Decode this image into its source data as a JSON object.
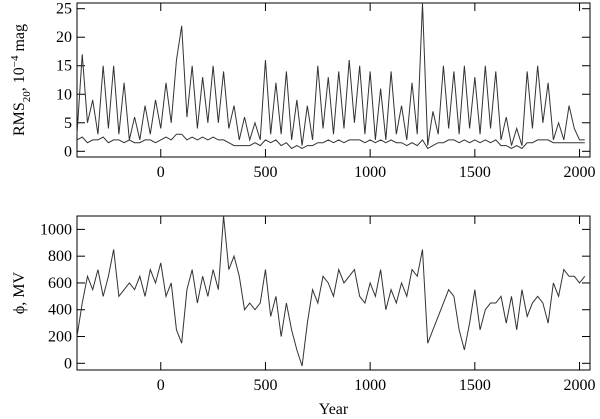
{
  "chart_data": [
    {
      "type": "line",
      "y_label_parts": [
        "RMS",
        "20",
        ", 10",
        "−4",
        " mag"
      ],
      "x": [
        -400,
        -375,
        -350,
        -325,
        -300,
        -275,
        -250,
        -225,
        -200,
        -175,
        -150,
        -125,
        -100,
        -75,
        -50,
        -25,
        0,
        25,
        50,
        75,
        100,
        125,
        150,
        175,
        200,
        225,
        250,
        275,
        300,
        325,
        350,
        375,
        400,
        425,
        450,
        475,
        500,
        525,
        550,
        575,
        600,
        625,
        650,
        675,
        700,
        725,
        750,
        775,
        800,
        825,
        850,
        875,
        900,
        925,
        950,
        975,
        1000,
        1025,
        1050,
        1075,
        1100,
        1125,
        1150,
        1175,
        1200,
        1225,
        1250,
        1275,
        1300,
        1325,
        1350,
        1375,
        1400,
        1425,
        1450,
        1475,
        1500,
        1525,
        1550,
        1575,
        1600,
        1625,
        1650,
        1675,
        1700,
        1725,
        1750,
        1775,
        1800,
        1825,
        1850,
        1875,
        1900,
        1925,
        1950,
        1975,
        2000,
        2025
      ],
      "series": [
        {
          "color": "#333333",
          "values": [
            3,
            17,
            5,
            9,
            3,
            15,
            4,
            15,
            3,
            12,
            2,
            6,
            2,
            8,
            3,
            9,
            4,
            12,
            5,
            16,
            22,
            6,
            15,
            4,
            13,
            5,
            15,
            5,
            14,
            4,
            8,
            2,
            6,
            2,
            5,
            2,
            16,
            3,
            12,
            3,
            14,
            2,
            9,
            1,
            8,
            2,
            15,
            4,
            13,
            3,
            14,
            4,
            16,
            5,
            15,
            3,
            14,
            2,
            11,
            2,
            14,
            3,
            8,
            2,
            12,
            3,
            26,
            1,
            7,
            3,
            15,
            4,
            14,
            3,
            15,
            4,
            13,
            3,
            15,
            4,
            14,
            2,
            6,
            1,
            4,
            1,
            14,
            4,
            15,
            5,
            12,
            2,
            5,
            2,
            8,
            4,
            2,
            2
          ]
        },
        {
          "color": "#333333",
          "values": [
            2,
            2.5,
            1.5,
            2,
            2,
            2.5,
            1.5,
            2,
            2,
            1.5,
            2,
            1.5,
            1.5,
            2,
            2,
            1.5,
            2,
            2.5,
            2,
            3,
            3,
            2,
            2.5,
            2,
            2.5,
            2,
            2.5,
            2,
            2,
            1.5,
            1,
            1,
            1,
            1,
            1.5,
            1,
            2,
            1.5,
            2,
            1,
            1.5,
            0.5,
            1,
            0.5,
            1,
            1,
            1.5,
            1.5,
            2,
            1.5,
            2,
            1.5,
            2,
            2,
            2,
            1.5,
            2,
            1.5,
            2,
            1.5,
            2,
            1.5,
            1.5,
            1,
            1.5,
            1,
            2,
            0.5,
            1,
            1.5,
            1.5,
            2,
            2,
            1.5,
            2,
            1.5,
            2,
            1.5,
            2,
            1.5,
            2,
            1,
            1,
            0.5,
            1,
            0.5,
            1.5,
            1.5,
            2,
            2,
            2,
            1.5,
            1.5,
            1.5,
            1.5,
            1.5,
            1.5,
            1.5
          ]
        }
      ],
      "xlim": [
        -400,
        2050
      ],
      "xticks": [
        0,
        500,
        1000,
        1500,
        2000
      ],
      "ylim": [
        -1,
        26
      ],
      "yticks": [
        0,
        5,
        10,
        15,
        20,
        25
      ]
    },
    {
      "type": "line",
      "y_label": "ϕ, MV",
      "x_label": "Year",
      "x": [
        -400,
        -375,
        -350,
        -325,
        -300,
        -275,
        -250,
        -225,
        -200,
        -175,
        -150,
        -125,
        -100,
        -75,
        -50,
        -25,
        0,
        25,
        50,
        75,
        100,
        125,
        150,
        175,
        200,
        225,
        250,
        275,
        300,
        325,
        350,
        375,
        400,
        425,
        450,
        475,
        500,
        525,
        550,
        575,
        600,
        625,
        650,
        675,
        700,
        725,
        750,
        775,
        800,
        825,
        850,
        875,
        900,
        925,
        950,
        975,
        1000,
        1025,
        1050,
        1075,
        1100,
        1125,
        1150,
        1175,
        1200,
        1225,
        1250,
        1275,
        1300,
        1325,
        1350,
        1375,
        1400,
        1425,
        1450,
        1475,
        1500,
        1525,
        1550,
        1575,
        1600,
        1625,
        1650,
        1675,
        1700,
        1725,
        1750,
        1775,
        1800,
        1825,
        1850,
        1875,
        1900,
        1925,
        1950,
        1975,
        2000,
        2025
      ],
      "series": [
        {
          "color": "#333333",
          "values": [
            200,
            450,
            650,
            550,
            700,
            500,
            650,
            850,
            500,
            550,
            600,
            550,
            650,
            500,
            700,
            600,
            750,
            500,
            600,
            250,
            150,
            550,
            700,
            450,
            650,
            500,
            700,
            550,
            1100,
            700,
            800,
            650,
            400,
            450,
            400,
            450,
            700,
            350,
            500,
            200,
            450,
            250,
            100,
            -20,
            300,
            550,
            450,
            650,
            600,
            500,
            700,
            600,
            650,
            700,
            500,
            450,
            600,
            500,
            700,
            400,
            550,
            450,
            600,
            500,
            700,
            650,
            850,
            150,
            250,
            350,
            450,
            550,
            500,
            250,
            100,
            300,
            550,
            250,
            400,
            450,
            450,
            500,
            300,
            500,
            250,
            550,
            350,
            450,
            500,
            450,
            300,
            600,
            500,
            700,
            650,
            650,
            600,
            650
          ]
        }
      ],
      "xlim": [
        -400,
        2050
      ],
      "xticks": [
        0,
        500,
        1000,
        1500,
        2000
      ],
      "ylim": [
        -50,
        1100
      ],
      "yticks": [
        0,
        200,
        400,
        600,
        800,
        1000
      ]
    }
  ]
}
